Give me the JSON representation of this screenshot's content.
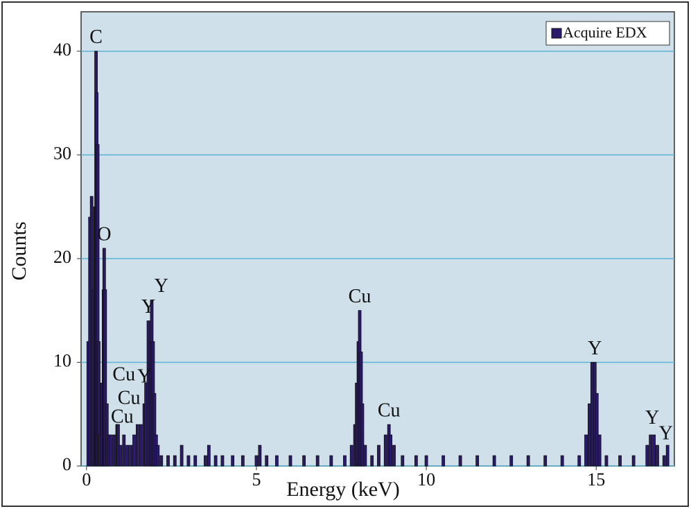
{
  "chart_data": {
    "type": "spectrum",
    "x_label": "Energy (keV)",
    "y_label": "Counts",
    "x": [
      0.05,
      0.1,
      0.15,
      0.2,
      0.25,
      0.28,
      0.3,
      0.33,
      0.36,
      0.4,
      0.45,
      0.5,
      0.52,
      0.55,
      0.6,
      0.65,
      0.7,
      0.8,
      0.9,
      0.93,
      1.0,
      1.1,
      1.2,
      1.3,
      1.4,
      1.5,
      1.6,
      1.7,
      1.75,
      1.82,
      1.88,
      1.92,
      1.96,
      2.0,
      2.05,
      2.1,
      2.2,
      2.4,
      2.6,
      2.8,
      3.0,
      3.2,
      3.5,
      3.6,
      3.8,
      4.0,
      4.3,
      4.6,
      5.0,
      5.1,
      5.3,
      5.6,
      6.0,
      6.4,
      6.8,
      7.2,
      7.6,
      7.8,
      7.9,
      7.95,
      8.0,
      8.04,
      8.08,
      8.12,
      8.2,
      8.4,
      8.6,
      8.8,
      8.9,
      8.95,
      9.05,
      9.3,
      9.7,
      10.0,
      10.5,
      11.0,
      11.5,
      12.0,
      12.5,
      13.0,
      13.5,
      14.0,
      14.5,
      14.7,
      14.8,
      14.88,
      14.96,
      15.02,
      15.1,
      15.3,
      15.7,
      16.1,
      16.5,
      16.6,
      16.7,
      16.8,
      17.0,
      17.1
    ],
    "series": [
      {
        "name": "Acquire EDX",
        "color": "#2b1a6b",
        "values": [
          12,
          24,
          26,
          17,
          25,
          40,
          36,
          31,
          12,
          3,
          8,
          17,
          21,
          17,
          6,
          3,
          3,
          3,
          4,
          4,
          2,
          3,
          2,
          2,
          3,
          4,
          4,
          6,
          8,
          14,
          12,
          16,
          12,
          7,
          3,
          2,
          1,
          1,
          1,
          2,
          1,
          1,
          1,
          2,
          1,
          1,
          1,
          1,
          1,
          2,
          1,
          1,
          1,
          1,
          1,
          1,
          1,
          2,
          4,
          8,
          12,
          15,
          11,
          6,
          2,
          1,
          2,
          3,
          4,
          3,
          2,
          1,
          1,
          1,
          1,
          1,
          1,
          1,
          1,
          1,
          1,
          1,
          1,
          3,
          6,
          10,
          10,
          7,
          3,
          1,
          1,
          1,
          2,
          3,
          3,
          2,
          1,
          2
        ]
      }
    ],
    "annotations": [
      {
        "label": "C",
        "x": 0.28,
        "y": 40
      },
      {
        "label": "O",
        "x": 0.52,
        "y": 21
      },
      {
        "label": "Y",
        "x": 1.82,
        "y": 14
      },
      {
        "label": "Y",
        "x": 2.2,
        "y": 16
      },
      {
        "label": "Cu",
        "x": 1.1,
        "y": 7.5
      },
      {
        "label": "Y",
        "x": 1.7,
        "y": 7.3
      },
      {
        "label": "Cu",
        "x": 1.25,
        "y": 5.2
      },
      {
        "label": "Cu",
        "x": 1.05,
        "y": 3.4
      },
      {
        "label": "Cu",
        "x": 8.04,
        "y": 15
      },
      {
        "label": "Cu",
        "x": 8.9,
        "y": 4
      },
      {
        "label": "Y",
        "x": 14.96,
        "y": 10
      },
      {
        "label": "Y",
        "x": 16.65,
        "y": 3.3
      },
      {
        "label": "Y",
        "x": 17.05,
        "y": 1.8
      }
    ],
    "xlim": [
      -0.16,
      17.3
    ],
    "xticks": [
      0,
      5,
      10,
      15
    ],
    "ylim": [
      0,
      43.8
    ],
    "yticks": [
      0,
      10,
      20,
      30,
      40
    ],
    "grid": true,
    "legend": "top-right",
    "background": "#cfe0ea",
    "grid_color": "#5ab4d6"
  }
}
